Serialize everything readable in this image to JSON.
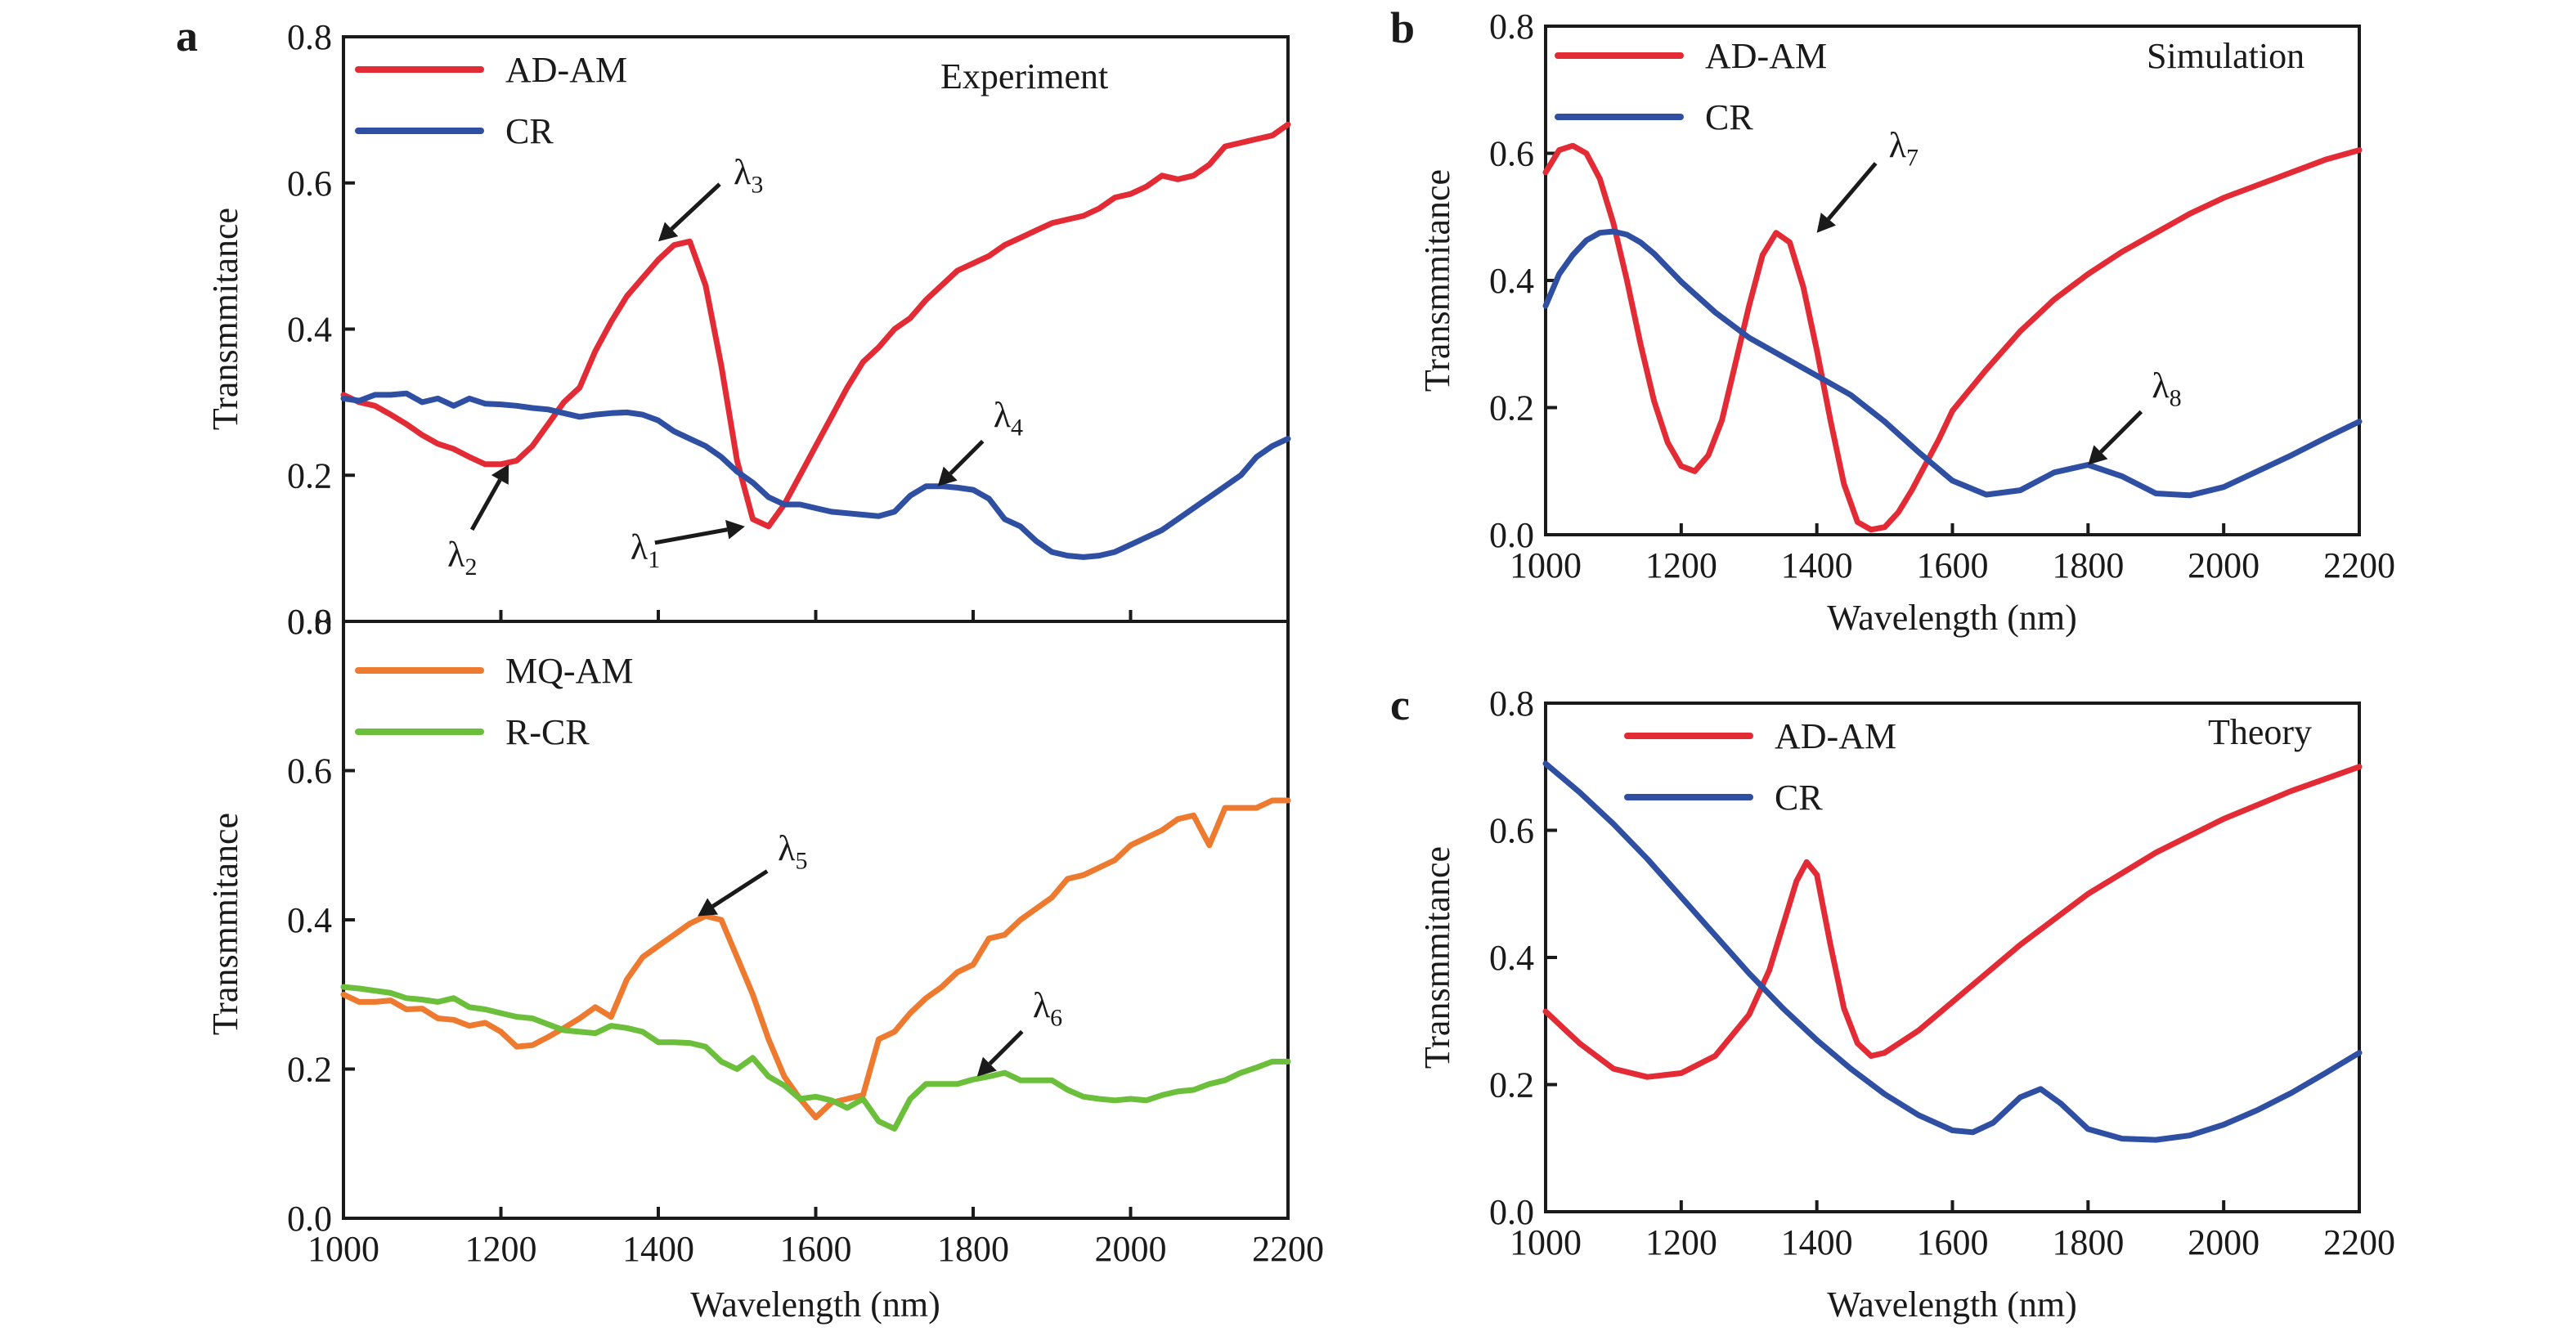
{
  "chart_data": [
    {
      "id": "a-top",
      "panel_label": "a",
      "type": "line",
      "title": "",
      "corner_text": "Experiment",
      "xlabel": "",
      "ylabel": "Transmmitance",
      "xlim": [
        1000,
        2200
      ],
      "ylim": [
        0.0,
        0.8
      ],
      "xticks": [],
      "yticks": [
        "0.0",
        "0.2",
        "0.4",
        "0.6",
        "0.8"
      ],
      "grid": false,
      "legend_position": "top-left",
      "series": [
        {
          "name": "AD-AM",
          "color": "#e32b36",
          "x": [
            1000,
            1020,
            1040,
            1060,
            1080,
            1100,
            1120,
            1140,
            1160,
            1180,
            1200,
            1220,
            1240,
            1260,
            1280,
            1300,
            1320,
            1340,
            1360,
            1380,
            1400,
            1420,
            1440,
            1460,
            1480,
            1500,
            1520,
            1540,
            1560,
            1580,
            1600,
            1620,
            1640,
            1660,
            1680,
            1700,
            1720,
            1740,
            1760,
            1780,
            1800,
            1820,
            1840,
            1860,
            1880,
            1900,
            1920,
            1940,
            1960,
            1980,
            2000,
            2020,
            2040,
            2060,
            2080,
            2100,
            2120,
            2140,
            2160,
            2180,
            2200
          ],
          "y": [
            0.31,
            0.3,
            0.295,
            0.283,
            0.27,
            0.255,
            0.243,
            0.236,
            0.225,
            0.215,
            0.215,
            0.22,
            0.24,
            0.27,
            0.3,
            0.32,
            0.37,
            0.41,
            0.445,
            0.47,
            0.495,
            0.515,
            0.52,
            0.46,
            0.35,
            0.22,
            0.14,
            0.13,
            0.16,
            0.2,
            0.24,
            0.28,
            0.32,
            0.355,
            0.375,
            0.4,
            0.415,
            0.44,
            0.46,
            0.48,
            0.49,
            0.5,
            0.515,
            0.525,
            0.535,
            0.545,
            0.55,
            0.555,
            0.565,
            0.58,
            0.585,
            0.595,
            0.61,
            0.605,
            0.61,
            0.625,
            0.65,
            0.655,
            0.66,
            0.665,
            0.68
          ]
        },
        {
          "name": "CR",
          "color": "#2f4fa3",
          "x": [
            1000,
            1020,
            1040,
            1060,
            1080,
            1100,
            1120,
            1140,
            1160,
            1180,
            1200,
            1220,
            1240,
            1260,
            1280,
            1300,
            1320,
            1340,
            1360,
            1380,
            1400,
            1420,
            1440,
            1460,
            1480,
            1500,
            1520,
            1540,
            1560,
            1580,
            1600,
            1620,
            1640,
            1660,
            1680,
            1700,
            1720,
            1740,
            1760,
            1780,
            1800,
            1820,
            1840,
            1860,
            1880,
            1900,
            1920,
            1940,
            1960,
            1980,
            2000,
            2020,
            2040,
            2060,
            2080,
            2100,
            2120,
            2140,
            2160,
            2180,
            2200
          ],
          "y": [
            0.305,
            0.302,
            0.31,
            0.31,
            0.312,
            0.3,
            0.305,
            0.295,
            0.305,
            0.298,
            0.297,
            0.295,
            0.292,
            0.29,
            0.285,
            0.28,
            0.283,
            0.285,
            0.286,
            0.283,
            0.275,
            0.26,
            0.25,
            0.24,
            0.225,
            0.205,
            0.19,
            0.17,
            0.16,
            0.16,
            0.155,
            0.15,
            0.148,
            0.146,
            0.144,
            0.15,
            0.172,
            0.185,
            0.185,
            0.183,
            0.18,
            0.168,
            0.14,
            0.13,
            0.11,
            0.095,
            0.09,
            0.088,
            0.09,
            0.095,
            0.105,
            0.115,
            0.125,
            0.14,
            0.155,
            0.17,
            0.185,
            0.2,
            0.225,
            0.24,
            0.25
          ]
        }
      ],
      "annotations": [
        {
          "symbol": "λ",
          "sub": "3",
          "x": 1400,
          "y": 0.52
        },
        {
          "symbol": "λ",
          "sub": "2",
          "x": 1210,
          "y": 0.215
        },
        {
          "symbol": "λ",
          "sub": "1",
          "x": 1510,
          "y": 0.13
        },
        {
          "symbol": "λ",
          "sub": "4",
          "x": 1755,
          "y": 0.185
        }
      ]
    },
    {
      "id": "a-bottom",
      "panel_label": "",
      "type": "line",
      "title": "",
      "corner_text": "",
      "xlabel": "Wavelength (nm)",
      "ylabel": "Transmmitance",
      "xlim": [
        1000,
        2200
      ],
      "ylim": [
        0.0,
        0.8
      ],
      "xticks": [
        "1000",
        "1200",
        "1400",
        "1600",
        "1800",
        "2000",
        "2200"
      ],
      "yticks": [
        "0.0",
        "0.2",
        "0.4",
        "0.6",
        "0.8"
      ],
      "grid": false,
      "legend_position": "top-left",
      "series": [
        {
          "name": "MQ-AM",
          "color": "#ee7a2f",
          "x": [
            1000,
            1020,
            1040,
            1060,
            1080,
            1100,
            1120,
            1140,
            1160,
            1180,
            1200,
            1220,
            1240,
            1260,
            1280,
            1300,
            1320,
            1340,
            1360,
            1380,
            1400,
            1420,
            1440,
            1460,
            1480,
            1500,
            1520,
            1540,
            1560,
            1580,
            1600,
            1620,
            1640,
            1660,
            1680,
            1700,
            1720,
            1740,
            1760,
            1780,
            1800,
            1820,
            1840,
            1860,
            1880,
            1900,
            1920,
            1940,
            1960,
            1980,
            2000,
            2020,
            2040,
            2060,
            2080,
            2100,
            2120,
            2140,
            2160,
            2180,
            2200
          ],
          "y": [
            0.3,
            0.29,
            0.29,
            0.292,
            0.28,
            0.281,
            0.268,
            0.266,
            0.258,
            0.262,
            0.25,
            0.23,
            0.232,
            0.243,
            0.255,
            0.268,
            0.283,
            0.27,
            0.32,
            0.35,
            0.365,
            0.38,
            0.395,
            0.405,
            0.4,
            0.35,
            0.3,
            0.24,
            0.19,
            0.16,
            0.135,
            0.155,
            0.16,
            0.165,
            0.24,
            0.25,
            0.275,
            0.295,
            0.31,
            0.33,
            0.34,
            0.375,
            0.38,
            0.4,
            0.415,
            0.43,
            0.455,
            0.46,
            0.47,
            0.48,
            0.5,
            0.51,
            0.52,
            0.535,
            0.54,
            0.5,
            0.55,
            0.55,
            0.55,
            0.56,
            0.56
          ]
        },
        {
          "name": "R-CR",
          "color": "#6bbf3a",
          "x": [
            1000,
            1020,
            1040,
            1060,
            1080,
            1100,
            1120,
            1140,
            1160,
            1180,
            1200,
            1220,
            1240,
            1260,
            1280,
            1300,
            1320,
            1340,
            1360,
            1380,
            1400,
            1420,
            1440,
            1460,
            1480,
            1500,
            1520,
            1540,
            1560,
            1580,
            1600,
            1620,
            1640,
            1660,
            1680,
            1700,
            1720,
            1740,
            1760,
            1780,
            1800,
            1820,
            1840,
            1860,
            1880,
            1900,
            1920,
            1940,
            1960,
            1980,
            2000,
            2020,
            2040,
            2060,
            2080,
            2100,
            2120,
            2140,
            2160,
            2180,
            2200
          ],
          "y": [
            0.31,
            0.308,
            0.305,
            0.302,
            0.295,
            0.293,
            0.29,
            0.295,
            0.283,
            0.28,
            0.275,
            0.27,
            0.268,
            0.26,
            0.252,
            0.25,
            0.248,
            0.258,
            0.255,
            0.25,
            0.236,
            0.236,
            0.235,
            0.23,
            0.21,
            0.2,
            0.215,
            0.19,
            0.178,
            0.16,
            0.163,
            0.158,
            0.148,
            0.16,
            0.13,
            0.12,
            0.16,
            0.18,
            0.18,
            0.18,
            0.186,
            0.19,
            0.195,
            0.185,
            0.185,
            0.185,
            0.172,
            0.163,
            0.16,
            0.158,
            0.16,
            0.158,
            0.165,
            0.17,
            0.172,
            0.18,
            0.185,
            0.195,
            0.202,
            0.21,
            0.21
          ]
        }
      ],
      "annotations": [
        {
          "symbol": "λ",
          "sub": "5",
          "x": 1450,
          "y": 0.405
        },
        {
          "symbol": "λ",
          "sub": "6",
          "x": 1805,
          "y": 0.19
        }
      ]
    },
    {
      "id": "b",
      "panel_label": "b",
      "type": "line",
      "title": "",
      "corner_text": "Simulation",
      "xlabel": "Wavelength (nm)",
      "ylabel": "Transmmitance",
      "xlim": [
        1000,
        2200
      ],
      "ylim": [
        0.0,
        0.8
      ],
      "xticks": [
        "1000",
        "1200",
        "1400",
        "1600",
        "1800",
        "2000",
        "2200"
      ],
      "yticks": [
        "0.0",
        "0.2",
        "0.4",
        "0.6",
        "0.8"
      ],
      "grid": false,
      "legend_position": "top-left",
      "series": [
        {
          "name": "AD-AM",
          "color": "#e32b36",
          "x": [
            1000,
            1020,
            1040,
            1060,
            1080,
            1100,
            1120,
            1140,
            1160,
            1180,
            1200,
            1220,
            1240,
            1260,
            1280,
            1300,
            1320,
            1340,
            1360,
            1380,
            1400,
            1420,
            1440,
            1460,
            1480,
            1500,
            1520,
            1540,
            1560,
            1580,
            1600,
            1650,
            1700,
            1750,
            1800,
            1850,
            1900,
            1950,
            2000,
            2050,
            2100,
            2150,
            2200
          ],
          "y": [
            0.57,
            0.605,
            0.612,
            0.6,
            0.56,
            0.49,
            0.4,
            0.3,
            0.21,
            0.145,
            0.108,
            0.1,
            0.125,
            0.18,
            0.27,
            0.36,
            0.44,
            0.475,
            0.46,
            0.39,
            0.29,
            0.18,
            0.08,
            0.02,
            0.008,
            0.012,
            0.035,
            0.07,
            0.11,
            0.15,
            0.195,
            0.26,
            0.32,
            0.37,
            0.41,
            0.445,
            0.475,
            0.505,
            0.53,
            0.55,
            0.57,
            0.59,
            0.605
          ]
        },
        {
          "name": "CR",
          "color": "#2f4fa3",
          "x": [
            1000,
            1020,
            1040,
            1060,
            1080,
            1100,
            1120,
            1140,
            1160,
            1180,
            1200,
            1250,
            1300,
            1350,
            1400,
            1450,
            1500,
            1550,
            1600,
            1650,
            1700,
            1750,
            1800,
            1850,
            1900,
            1950,
            2000,
            2050,
            2100,
            2150,
            2200
          ],
          "y": [
            0.36,
            0.41,
            0.44,
            0.463,
            0.475,
            0.477,
            0.472,
            0.46,
            0.442,
            0.42,
            0.398,
            0.35,
            0.31,
            0.28,
            0.25,
            0.22,
            0.178,
            0.13,
            0.085,
            0.063,
            0.07,
            0.098,
            0.11,
            0.092,
            0.065,
            0.062,
            0.075,
            0.1,
            0.125,
            0.152,
            0.178
          ]
        }
      ],
      "annotations": [
        {
          "symbol": "λ",
          "sub": "7",
          "x": 1400,
          "y": 0.475
        },
        {
          "symbol": "λ",
          "sub": "8",
          "x": 1800,
          "y": 0.11
        }
      ]
    },
    {
      "id": "c",
      "panel_label": "c",
      "type": "line",
      "title": "",
      "corner_text": "Theory",
      "xlabel": "Wavelength (nm)",
      "ylabel": "Transmmitance",
      "xlim": [
        1000,
        2200
      ],
      "ylim": [
        0.0,
        0.8
      ],
      "xticks": [
        "1000",
        "1200",
        "1400",
        "1600",
        "1800",
        "2000",
        "2200"
      ],
      "yticks": [
        "0.0",
        "0.2",
        "0.4",
        "0.6",
        "0.8"
      ],
      "grid": false,
      "legend_position": "top-left",
      "series": [
        {
          "name": "AD-AM",
          "color": "#e32b36",
          "x": [
            1000,
            1050,
            1100,
            1150,
            1200,
            1250,
            1300,
            1330,
            1350,
            1370,
            1385,
            1400,
            1420,
            1440,
            1460,
            1480,
            1500,
            1550,
            1600,
            1650,
            1700,
            1800,
            1900,
            2000,
            2100,
            2200
          ],
          "y": [
            0.315,
            0.265,
            0.225,
            0.212,
            0.218,
            0.245,
            0.31,
            0.38,
            0.45,
            0.52,
            0.55,
            0.53,
            0.42,
            0.32,
            0.265,
            0.245,
            0.25,
            0.285,
            0.33,
            0.375,
            0.42,
            0.5,
            0.565,
            0.618,
            0.662,
            0.7
          ]
        },
        {
          "name": "CR",
          "color": "#2f4fa3",
          "x": [
            1000,
            1050,
            1100,
            1150,
            1200,
            1250,
            1300,
            1350,
            1400,
            1450,
            1500,
            1550,
            1600,
            1630,
            1660,
            1700,
            1730,
            1760,
            1800,
            1850,
            1900,
            1950,
            2000,
            2050,
            2100,
            2150,
            2200
          ],
          "y": [
            0.705,
            0.66,
            0.61,
            0.555,
            0.495,
            0.435,
            0.375,
            0.32,
            0.27,
            0.225,
            0.185,
            0.152,
            0.128,
            0.125,
            0.14,
            0.18,
            0.193,
            0.17,
            0.13,
            0.115,
            0.113,
            0.12,
            0.137,
            0.16,
            0.187,
            0.218,
            0.25
          ]
        }
      ],
      "annotations": []
    }
  ]
}
